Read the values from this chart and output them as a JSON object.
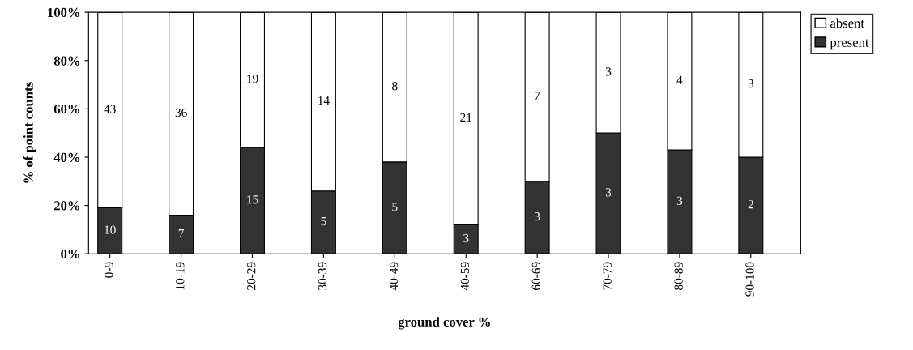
{
  "chart_data": {
    "type": "bar",
    "stacked": true,
    "xlabel": "ground cover %",
    "ylabel": "% of point counts",
    "categories": [
      "0-9",
      "10-19",
      "20-29",
      "30-39",
      "40-49",
      "40-59",
      "60-69",
      "70-79",
      "80-89",
      "90-100"
    ],
    "series": [
      {
        "name": "present",
        "color": "#333333",
        "values": [
          19,
          16,
          44,
          26,
          38,
          12,
          30,
          50,
          43,
          40
        ]
      },
      {
        "name": "absent",
        "color": "#ffffff",
        "values": [
          81,
          84,
          56,
          74,
          62,
          88,
          70,
          50,
          57,
          60
        ]
      }
    ],
    "annotations": [
      "10",
      "7",
      "15",
      "5",
      "5",
      "3",
      "3",
      "3",
      "3",
      "2",
      "43",
      "36",
      "19",
      "14",
      "8",
      "21",
      "7",
      "3",
      "4",
      "3"
    ],
    "ylim": [
      0,
      100
    ],
    "yticks": [
      {
        "value": 0,
        "label": "0%"
      },
      {
        "value": 20,
        "label": "20%"
      },
      {
        "value": 40,
        "label": "40%"
      },
      {
        "value": 60,
        "label": "60%"
      },
      {
        "value": 80,
        "label": "80%"
      },
      {
        "value": 100,
        "label": "100%"
      }
    ],
    "legend": "top right",
    "grid": false
  }
}
